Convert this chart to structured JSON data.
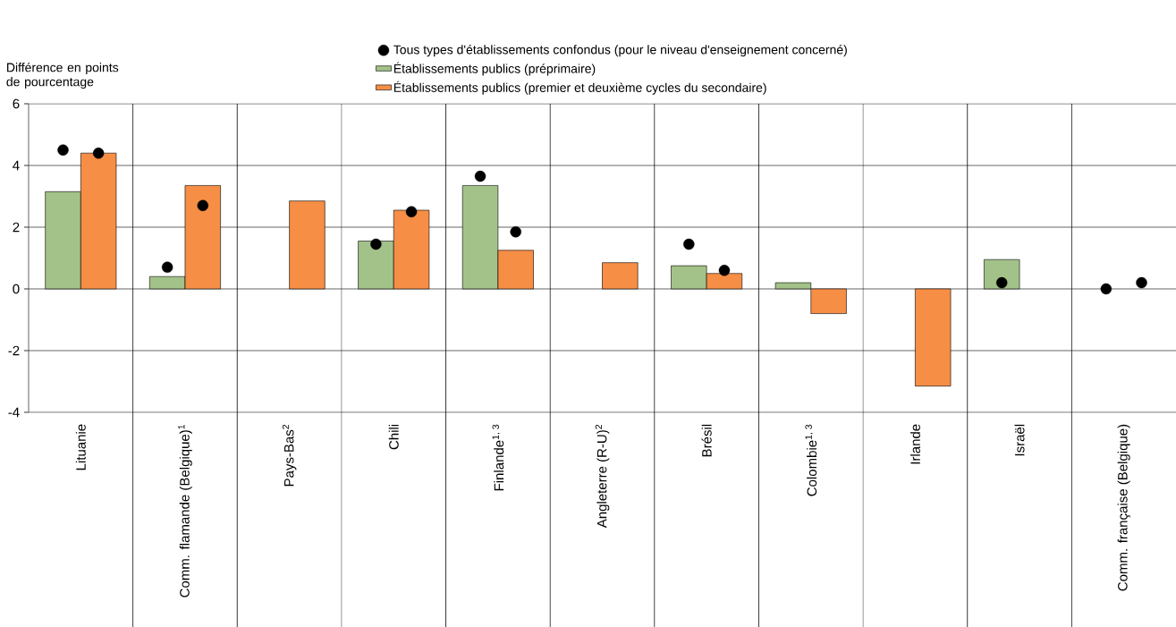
{
  "chart_data": {
    "type": "bar",
    "ylabel": "Différence en points de pourcentage",
    "categories": [
      "Lituanie",
      "Comm. flamande (Belgique)$^{1}$",
      "Pays-Bas$^{2}$",
      "Chili",
      "Finlande$^{1, 3}$",
      "Angleterre (R-U)$^{2}$",
      "Brésil",
      "Colombie$^{1, 3}$",
      "Irlande",
      "Israël",
      "Comm. française (Belgique)"
    ],
    "series": [
      {
        "type": "scatter",
        "name": "Tous types d'établissements confondus (pour le niveau d'enseignement concerné)",
        "color": "#000000",
        "values": [
          4.5,
          0.7,
          null,
          1.45,
          3.65,
          null,
          1.45,
          null,
          null,
          0.2,
          0.0
        ]
      },
      {
        "name": "Établissements publics (préprimaire)",
        "color": "#a3c289",
        "values": [
          3.15,
          0.4,
          null,
          1.55,
          3.35,
          null,
          0.75,
          0.2,
          null,
          0.95,
          null
        ]
      },
      {
        "name": "Établissements publics (premier et deuxième cycles du secondaire)",
        "color": "#f68e46",
        "values": [
          4.4,
          3.35,
          2.85,
          2.55,
          1.25,
          0.85,
          0.5,
          -0.8,
          -3.15,
          null,
          null
        ]
      },
      {
        "type": "scatter",
        "color": "#000000",
        "values": [
          4.4,
          2.7,
          null,
          2.5,
          1.85,
          null,
          0.6,
          null,
          null,
          null,
          0.2
        ]
      }
    ],
    "ylim": [
      -4,
      6
    ],
    "yticks": [
      -4,
      -2,
      0,
      2,
      4,
      6
    ],
    "grid": "y",
    "legend": "top"
  }
}
